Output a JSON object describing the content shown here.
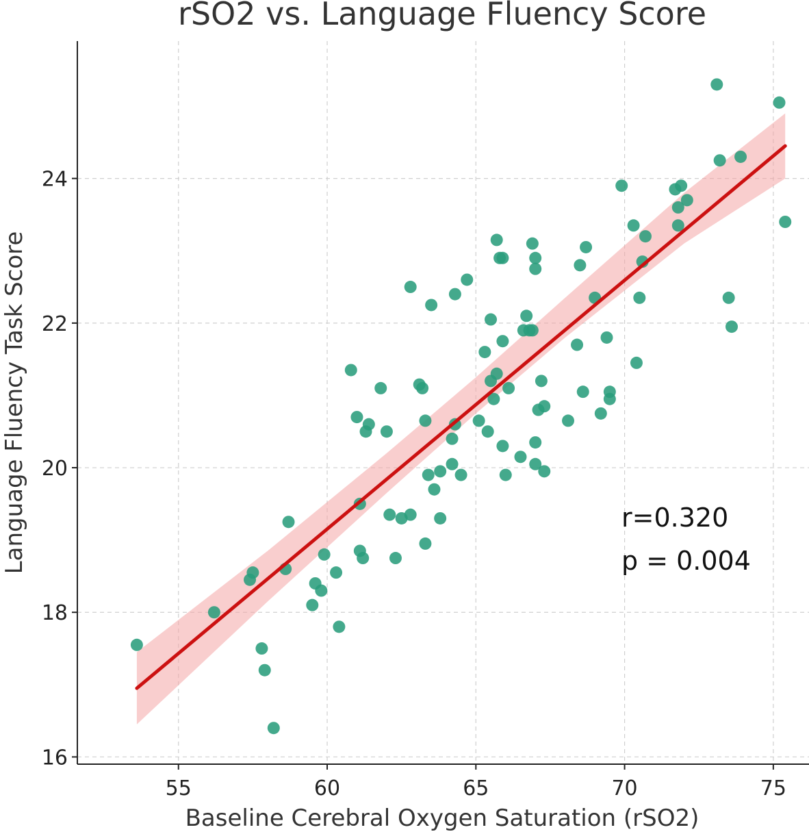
{
  "chart_data": {
    "type": "scatter",
    "title": "rSO2 vs. Language Fluency Score",
    "xlabel": "Baseline Cerebral Oxygen Saturation (rSO2)",
    "ylabel": "Language Fluency Task Score",
    "xlim": [
      51.6,
      76.2
    ],
    "ylim": [
      15.9,
      25.9
    ],
    "xticks": [
      55,
      60,
      65,
      70,
      75
    ],
    "yticks": [
      16,
      18,
      20,
      22,
      24
    ],
    "grid": true,
    "point_color": "#2a9d7c",
    "fit_color": "#cc1111",
    "band_color": "#f4a6a6",
    "annotations": [
      "r=0.320",
      "p = 0.004"
    ],
    "fit_line": {
      "x": [
        53.6,
        75.4
      ],
      "y": [
        16.95,
        24.45
      ]
    },
    "confidence_band": {
      "x": [
        53.6,
        58.0,
        62.0,
        65.0,
        68.0,
        72.0,
        75.4
      ],
      "lower": [
        16.45,
        18.15,
        19.65,
        20.75,
        21.8,
        23.1,
        24.0
      ],
      "upper": [
        17.45,
        18.85,
        20.2,
        21.25,
        22.35,
        23.8,
        24.9
      ]
    },
    "points": [
      [
        53.6,
        17.55
      ],
      [
        56.2,
        18.0
      ],
      [
        57.4,
        18.45
      ],
      [
        57.5,
        18.55
      ],
      [
        57.8,
        17.5
      ],
      [
        57.9,
        17.2
      ],
      [
        58.2,
        16.4
      ],
      [
        58.6,
        18.6
      ],
      [
        58.7,
        19.25
      ],
      [
        59.5,
        18.1
      ],
      [
        59.6,
        18.4
      ],
      [
        59.8,
        18.3
      ],
      [
        59.9,
        18.8
      ],
      [
        60.3,
        18.55
      ],
      [
        60.4,
        17.8
      ],
      [
        60.8,
        21.35
      ],
      [
        61.0,
        20.7
      ],
      [
        61.1,
        19.5
      ],
      [
        61.1,
        18.85
      ],
      [
        61.2,
        18.75
      ],
      [
        61.3,
        20.5
      ],
      [
        61.4,
        20.6
      ],
      [
        61.8,
        21.1
      ],
      [
        62.0,
        20.5
      ],
      [
        62.1,
        19.35
      ],
      [
        62.3,
        18.75
      ],
      [
        62.5,
        19.3
      ],
      [
        62.8,
        22.5
      ],
      [
        62.8,
        19.35
      ],
      [
        63.1,
        21.15
      ],
      [
        63.2,
        21.1
      ],
      [
        63.3,
        18.95
      ],
      [
        63.3,
        20.65
      ],
      [
        63.4,
        19.9
      ],
      [
        63.5,
        22.25
      ],
      [
        63.6,
        19.7
      ],
      [
        63.8,
        19.95
      ],
      [
        63.8,
        19.3
      ],
      [
        64.2,
        20.05
      ],
      [
        64.2,
        20.4
      ],
      [
        64.3,
        22.4
      ],
      [
        64.3,
        20.6
      ],
      [
        64.5,
        19.9
      ],
      [
        64.7,
        22.6
      ],
      [
        65.1,
        20.65
      ],
      [
        65.3,
        21.6
      ],
      [
        65.4,
        20.5
      ],
      [
        65.5,
        22.05
      ],
      [
        65.5,
        21.2
      ],
      [
        65.6,
        20.95
      ],
      [
        65.7,
        21.3
      ],
      [
        65.7,
        23.15
      ],
      [
        65.8,
        22.9
      ],
      [
        65.9,
        22.9
      ],
      [
        65.9,
        21.75
      ],
      [
        65.9,
        20.3
      ],
      [
        66.0,
        19.9
      ],
      [
        66.1,
        21.1
      ],
      [
        66.5,
        20.15
      ],
      [
        66.6,
        21.9
      ],
      [
        66.7,
        22.1
      ],
      [
        66.8,
        21.9
      ],
      [
        66.9,
        21.9
      ],
      [
        66.9,
        23.1
      ],
      [
        67.0,
        22.75
      ],
      [
        67.0,
        22.9
      ],
      [
        67.0,
        20.35
      ],
      [
        67.0,
        20.05
      ],
      [
        67.1,
        20.8
      ],
      [
        67.2,
        21.2
      ],
      [
        67.3,
        20.85
      ],
      [
        67.3,
        19.95
      ],
      [
        68.1,
        20.65
      ],
      [
        68.4,
        21.7
      ],
      [
        68.5,
        22.8
      ],
      [
        68.6,
        21.05
      ],
      [
        68.7,
        23.05
      ],
      [
        69.0,
        22.35
      ],
      [
        69.2,
        20.75
      ],
      [
        69.4,
        21.8
      ],
      [
        69.5,
        21.05
      ],
      [
        69.5,
        20.95
      ],
      [
        69.9,
        23.9
      ],
      [
        70.3,
        23.35
      ],
      [
        70.4,
        21.45
      ],
      [
        70.5,
        22.35
      ],
      [
        70.6,
        22.85
      ],
      [
        70.7,
        23.2
      ],
      [
        71.7,
        23.85
      ],
      [
        71.8,
        23.35
      ],
      [
        71.8,
        23.6
      ],
      [
        71.9,
        23.9
      ],
      [
        72.1,
        23.7
      ],
      [
        73.1,
        25.3
      ],
      [
        73.2,
        24.25
      ],
      [
        73.5,
        22.35
      ],
      [
        73.6,
        21.95
      ],
      [
        73.9,
        24.3
      ],
      [
        75.2,
        25.05
      ],
      [
        75.4,
        23.4
      ]
    ]
  }
}
